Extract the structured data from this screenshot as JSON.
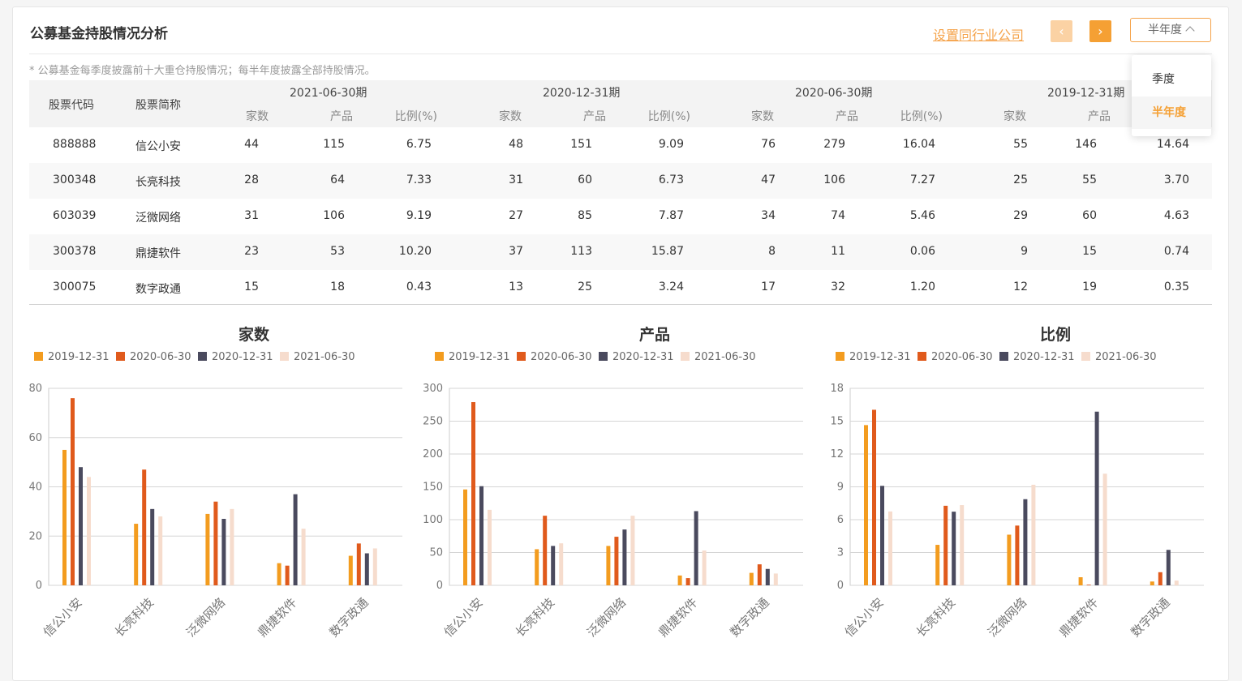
{
  "header": {
    "title": "公募基金持股情况分析",
    "peer_link": "设置同行业公司",
    "prev_icon": "chevron-left",
    "next_icon": "chevron-right",
    "period_selected": "半年度",
    "note": "* 公募基金每季度披露前十大重仓持股情况；每半年度披露全部持股情况。"
  },
  "dropdown": {
    "options": [
      "季度",
      "半年度"
    ],
    "active": "半年度"
  },
  "colors": {
    "accent": "#f5a034",
    "s2019": "#f39c1f",
    "s2020a": "#e05a1c",
    "s2020b": "#4a4a5e",
    "s2021": "#f6dccd"
  },
  "table": {
    "col_code": "股票代码",
    "col_name": "股票简称",
    "periods": [
      "2021-06-30期",
      "2020-12-31期",
      "2020-06-30期",
      "2019-12-31期"
    ],
    "sub_cols": [
      "家数",
      "产品",
      "比例(%)"
    ],
    "rows": [
      {
        "code": "888888",
        "name": "信公小安",
        "vals": [
          "44",
          "115",
          "6.75",
          "48",
          "151",
          "9.09",
          "76",
          "279",
          "16.04",
          "55",
          "146",
          "14.64"
        ]
      },
      {
        "code": "300348",
        "name": "长亮科技",
        "vals": [
          "28",
          "64",
          "7.33",
          "31",
          "60",
          "6.73",
          "47",
          "106",
          "7.27",
          "25",
          "55",
          "3.70"
        ]
      },
      {
        "code": "603039",
        "name": "泛微网络",
        "vals": [
          "31",
          "106",
          "9.19",
          "27",
          "85",
          "7.87",
          "34",
          "74",
          "5.46",
          "29",
          "60",
          "4.63"
        ]
      },
      {
        "code": "300378",
        "name": "鼎捷软件",
        "vals": [
          "23",
          "53",
          "10.20",
          "37",
          "113",
          "15.87",
          "8",
          "11",
          "0.06",
          "9",
          "15",
          "0.74"
        ]
      },
      {
        "code": "300075",
        "name": "数字政通",
        "vals": [
          "15",
          "18",
          "0.43",
          "13",
          "25",
          "3.24",
          "17",
          "32",
          "1.20",
          "12",
          "19",
          "0.35"
        ]
      }
    ]
  },
  "chart_data": [
    {
      "type": "bar",
      "title": "家数",
      "categories": [
        "信公小安",
        "长亮科技",
        "泛微网络",
        "鼎捷软件",
        "数字政通"
      ],
      "ylim": [
        0,
        80
      ],
      "yticks": [
        "0",
        "20",
        "40",
        "60",
        "80"
      ],
      "series": [
        {
          "name": "2019-12-31",
          "values": [
            55,
            25,
            29,
            9,
            12
          ]
        },
        {
          "name": "2020-06-30",
          "values": [
            76,
            47,
            34,
            8,
            17
          ]
        },
        {
          "name": "2020-12-31",
          "values": [
            48,
            31,
            27,
            37,
            13
          ]
        },
        {
          "name": "2021-06-30",
          "values": [
            44,
            28,
            31,
            23,
            15
          ]
        }
      ]
    },
    {
      "type": "bar",
      "title": "产品",
      "categories": [
        "信公小安",
        "长亮科技",
        "泛微网络",
        "鼎捷软件",
        "数字政通"
      ],
      "ylim": [
        0,
        300
      ],
      "yticks": [
        "0",
        "50",
        "100",
        "150",
        "200",
        "250",
        "300"
      ],
      "series": [
        {
          "name": "2019-12-31",
          "values": [
            146,
            55,
            60,
            15,
            19
          ]
        },
        {
          "name": "2020-06-30",
          "values": [
            279,
            106,
            74,
            11,
            32
          ]
        },
        {
          "name": "2020-12-31",
          "values": [
            151,
            60,
            85,
            113,
            25
          ]
        },
        {
          "name": "2021-06-30",
          "values": [
            115,
            64,
            106,
            53,
            18
          ]
        }
      ]
    },
    {
      "type": "bar",
      "title": "比例",
      "categories": [
        "信公小安",
        "长亮科技",
        "泛微网络",
        "鼎捷软件",
        "数字政通"
      ],
      "ylim": [
        0,
        18
      ],
      "yticks": [
        "0",
        "3",
        "6",
        "9",
        "12",
        "15",
        "18"
      ],
      "series": [
        {
          "name": "2019-12-31",
          "values": [
            14.64,
            3.7,
            4.63,
            0.74,
            0.35
          ]
        },
        {
          "name": "2020-06-30",
          "values": [
            16.04,
            7.27,
            5.46,
            0.06,
            1.2
          ]
        },
        {
          "name": "2020-12-31",
          "values": [
            9.09,
            6.73,
            7.87,
            15.87,
            3.24
          ]
        },
        {
          "name": "2021-06-30",
          "values": [
            6.75,
            7.33,
            9.19,
            10.2,
            0.43
          ]
        }
      ]
    }
  ]
}
